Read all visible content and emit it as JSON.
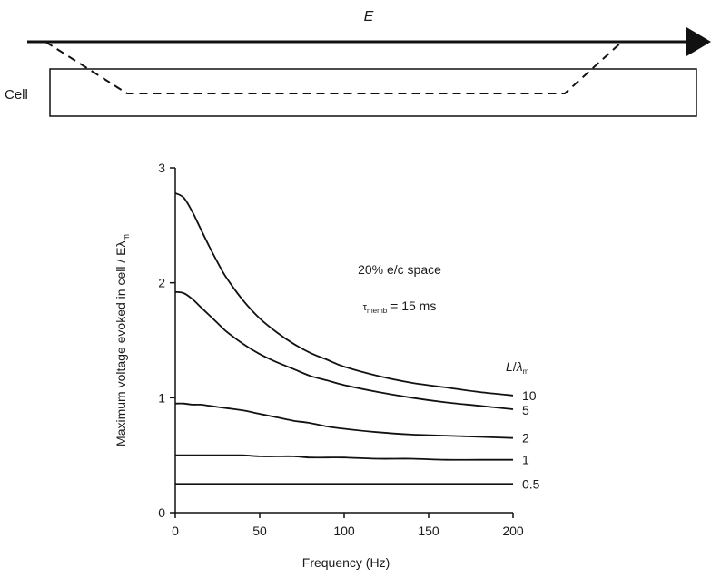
{
  "schematic": {
    "field_label": "E",
    "cell_label": "Cell"
  },
  "chart_data": {
    "type": "line",
    "xlabel": "Frequency (Hz)",
    "ylabel": "Maximum voltage evoked in cell / Eλ",
    "ylabel_sub": "m",
    "xlim": [
      0,
      200
    ],
    "ylim": [
      0,
      3
    ],
    "xticks": [
      "0",
      "50",
      "100",
      "150",
      "200"
    ],
    "yticks": [
      "0",
      "1",
      "2",
      "3"
    ],
    "annotations": {
      "space_label": "20% e/c space",
      "tau_prefix": "τ",
      "tau_sub": "memb",
      "tau_value": " = 15 ms",
      "legend_title_L": "L",
      "legend_title_slash": "/",
      "legend_title_lambda": "λ",
      "legend_title_sub": "m"
    },
    "x": [
      0,
      5,
      10,
      15,
      20,
      25,
      30,
      40,
      50,
      60,
      70,
      80,
      90,
      100,
      120,
      140,
      160,
      180,
      200
    ],
    "series": [
      {
        "name": "10",
        "values": [
          2.78,
          2.74,
          2.62,
          2.47,
          2.32,
          2.18,
          2.05,
          1.85,
          1.69,
          1.57,
          1.47,
          1.39,
          1.33,
          1.27,
          1.19,
          1.13,
          1.09,
          1.05,
          1.02
        ]
      },
      {
        "name": "5",
        "values": [
          1.92,
          1.91,
          1.86,
          1.79,
          1.72,
          1.65,
          1.58,
          1.47,
          1.38,
          1.31,
          1.25,
          1.19,
          1.15,
          1.11,
          1.05,
          1.0,
          0.96,
          0.93,
          0.9
        ]
      },
      {
        "name": "2",
        "values": [
          0.95,
          0.95,
          0.94,
          0.94,
          0.93,
          0.92,
          0.91,
          0.89,
          0.86,
          0.83,
          0.8,
          0.78,
          0.75,
          0.73,
          0.7,
          0.68,
          0.67,
          0.66,
          0.65
        ]
      },
      {
        "name": "1",
        "values": [
          0.5,
          0.5,
          0.5,
          0.5,
          0.5,
          0.5,
          0.5,
          0.5,
          0.49,
          0.49,
          0.49,
          0.48,
          0.48,
          0.48,
          0.47,
          0.47,
          0.46,
          0.46,
          0.46
        ]
      },
      {
        "name": "0.5",
        "values": [
          0.25,
          0.25,
          0.25,
          0.25,
          0.25,
          0.25,
          0.25,
          0.25,
          0.25,
          0.25,
          0.25,
          0.25,
          0.25,
          0.25,
          0.25,
          0.25,
          0.25,
          0.25,
          0.25
        ]
      }
    ],
    "grid": false,
    "legend": "right"
  }
}
